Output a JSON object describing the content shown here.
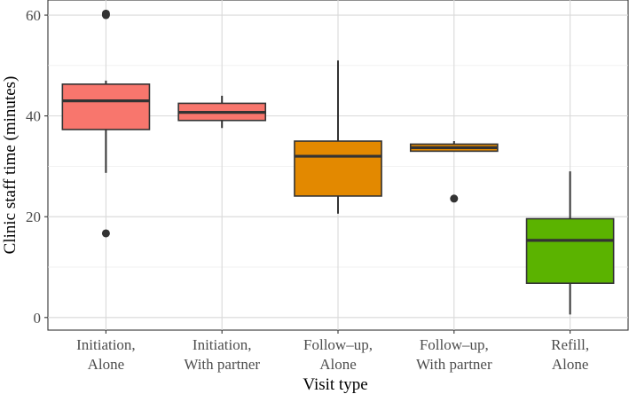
{
  "chart_data": {
    "type": "boxplot",
    "title": "",
    "xlabel": "Visit type",
    "ylabel": "Clinic staff time (minutes)",
    "ylim": [
      -2.5,
      63
    ],
    "yticks": [
      0,
      20,
      40,
      60
    ],
    "grid": true,
    "categories": [
      {
        "line1": "Initiation,",
        "line2": "Alone",
        "color": "#F8766D"
      },
      {
        "line1": "Initiation,",
        "line2": "With partner",
        "color": "#F8766D"
      },
      {
        "line1": "Follow–up,",
        "line2": "Alone",
        "color": "#E38900"
      },
      {
        "line1": "Follow–up,",
        "line2": "With partner",
        "color": "#E38900"
      },
      {
        "line1": "Refill,",
        "line2": "Alone",
        "color": "#5BB300"
      }
    ],
    "boxes": [
      {
        "min": 28.7,
        "q1": 37.3,
        "median": 43.0,
        "q3": 46.3,
        "max": 47.0,
        "outliers": [
          60.0,
          60.3,
          16.7
        ]
      },
      {
        "min": 37.6,
        "q1": 39.1,
        "median": 40.7,
        "q3": 42.5,
        "max": 44.0,
        "outliers": []
      },
      {
        "min": 20.6,
        "q1": 24.1,
        "median": 32.0,
        "q3": 35.0,
        "max": 51.0,
        "outliers": []
      },
      {
        "min": 33.0,
        "q1": 33.0,
        "median": 33.7,
        "q3": 34.4,
        "max": 35.0,
        "outliers": [
          23.6
        ]
      },
      {
        "min": 0.6,
        "q1": 6.8,
        "median": 15.3,
        "q3": 19.6,
        "max": 29.0,
        "outliers": []
      }
    ]
  }
}
